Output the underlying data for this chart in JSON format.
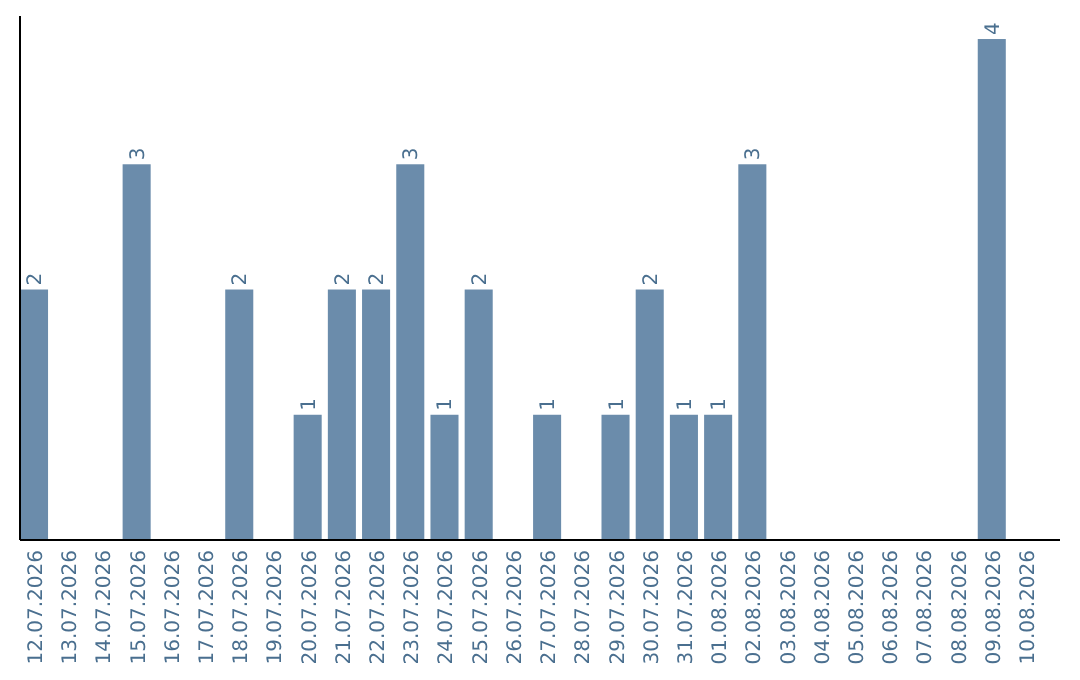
{
  "chart_data": {
    "type": "bar",
    "categories": [
      "12.07.2026",
      "13.07.2026",
      "14.07.2026",
      "15.07.2026",
      "16.07.2026",
      "17.07.2026",
      "18.07.2026",
      "19.07.2026",
      "20.07.2026",
      "21.07.2026",
      "22.07.2026",
      "23.07.2026",
      "24.07.2026",
      "25.07.2026",
      "26.07.2026",
      "27.07.2026",
      "28.07.2026",
      "29.07.2026",
      "30.07.2026",
      "31.07.2026",
      "01.08.2026",
      "02.08.2026",
      "03.08.2026",
      "04.08.2026",
      "05.08.2026",
      "06.08.2026",
      "07.08.2026",
      "08.08.2026",
      "09.08.2026",
      "10.08.2026"
    ],
    "values": [
      2,
      0,
      0,
      3,
      0,
      0,
      2,
      0,
      1,
      2,
      2,
      3,
      1,
      2,
      0,
      1,
      0,
      1,
      2,
      1,
      1,
      3,
      0,
      0,
      0,
      0,
      0,
      0,
      4,
      0
    ],
    "value_labels": [
      "2",
      null,
      null,
      "3",
      null,
      null,
      "2",
      null,
      "1",
      "2",
      "2",
      "3",
      "1",
      "2",
      null,
      "1",
      null,
      "1",
      "2",
      "1",
      "1",
      "3",
      null,
      null,
      null,
      null,
      null,
      null,
      "4",
      null
    ],
    "color": "#6b8cab",
    "grid": false,
    "tick_labels": "x"
  }
}
